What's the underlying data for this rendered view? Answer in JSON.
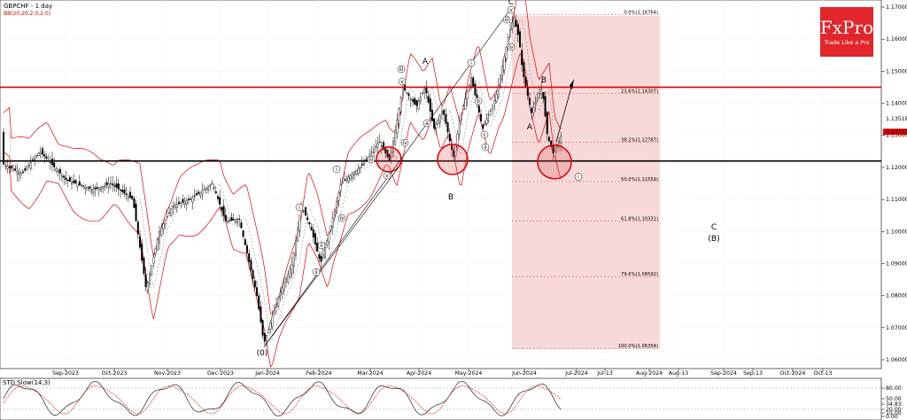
{
  "header": {
    "symbol_timeframe": "GBPCHF - 1 day",
    "indicator": "BB(20,20,2.0,2.0)"
  },
  "logo": {
    "name": "FxPro",
    "tagline": "Trade Like a Pro"
  },
  "chart_data": [
    {
      "type": "candlestick",
      "symbol": "GBPCHF",
      "timeframe": "1 day",
      "ylim": [
        1.06,
        1.17
      ],
      "y_ticks": [
        "1.17000",
        "1.16000",
        "1.15000",
        "1.14000",
        "1.13000",
        "1.12000",
        "1.11000",
        "1.10000",
        "1.09000",
        "1.08000",
        "1.07000",
        "1.06000"
      ],
      "x_ticks": [
        "Sep-2023",
        "Oct-2023",
        "Nov-2023",
        "Dec-2023",
        "Jan-2024",
        "Feb-2024",
        "Mar-2024",
        "Apr-2024",
        "May-2024",
        "Jun-2024",
        "Jul-2024",
        "Jul-13",
        "Aug-2024",
        "Aug-13",
        "Sep-2024",
        "Sep-13",
        "Oct-2024",
        "Oct-13"
      ],
      "price_labels": {
        "upper": "1.13518",
        "current": "1.13110"
      },
      "horizontal_levels": [
        {
          "price": 1.145,
          "color": "#e00000",
          "role": "resistance"
        },
        {
          "price": 1.122,
          "color": "#000000",
          "role": "support"
        }
      ],
      "fibonacci": [
        {
          "label": "0.0%(1.16764)",
          "price": 1.16764
        },
        {
          "label": "23.6%(1.14307)",
          "price": 1.14307
        },
        {
          "label": "38.2%(1.12787)",
          "price": 1.12787
        },
        {
          "label": "50.0%(1.11559)",
          "price": 1.11559
        },
        {
          "label": "61.8%(1.10331)",
          "price": 1.10331
        },
        {
          "label": "79.6%(1.08592)",
          "price": 1.08592
        },
        {
          "label": "100.0%(1.06354)",
          "price": 1.06354
        }
      ],
      "wave_labels": [
        "(0)",
        "A",
        "B",
        "A",
        "B",
        "C",
        "C",
        "(B)"
      ],
      "wave_labels_small": [
        "i",
        "ii",
        "iii",
        "iv",
        "v",
        "a",
        "b",
        "c",
        "i",
        "ii",
        "i",
        "ii",
        "iii",
        "iv",
        "v",
        "iii",
        "iv",
        "v"
      ]
    },
    {
      "type": "line",
      "title": "STD Slow(14,3)",
      "ylim": [
        0,
        100
      ],
      "y_ticks": [
        "80.00",
        "50.00",
        "34.83",
        "20.00",
        "10.00",
        "0.00"
      ],
      "levels": [
        20,
        80
      ]
    }
  ],
  "colors": {
    "bb_band": "#e00000",
    "candle_up": "#000000",
    "candle_dn": "#000000",
    "fib_zone": "#f4cccc",
    "logo_bg": "#e2262c",
    "circle": "#e00000"
  }
}
